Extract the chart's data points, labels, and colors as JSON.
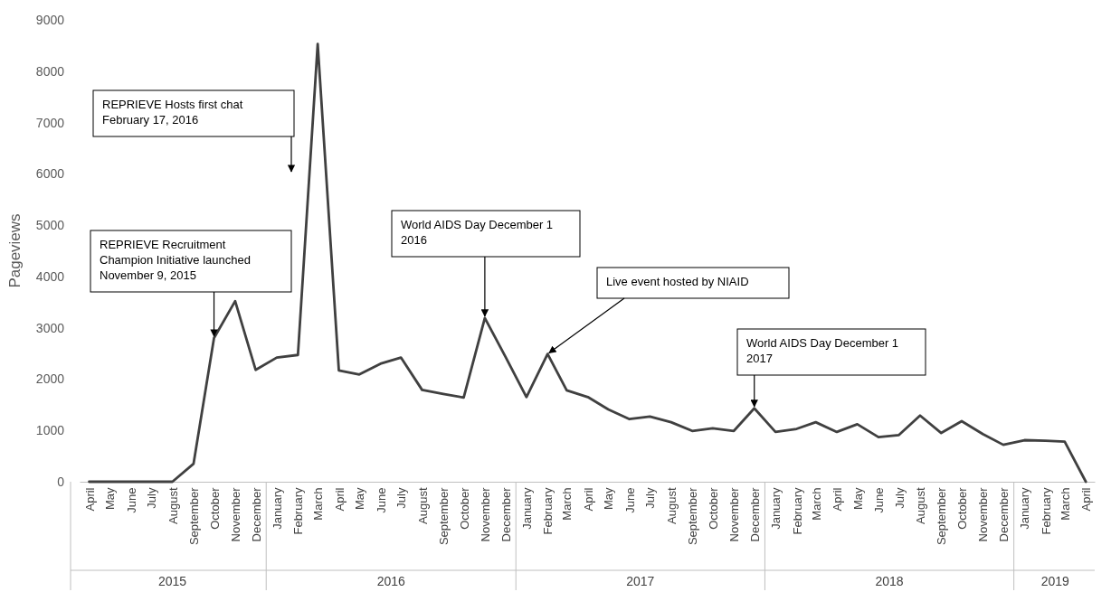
{
  "chart_data": {
    "type": "line",
    "ylabel": "Pageviews",
    "x": [
      "2015-04",
      "2015-05",
      "2015-06",
      "2015-07",
      "2015-08",
      "2015-09",
      "2015-10",
      "2015-11",
      "2015-12",
      "2016-01",
      "2016-02",
      "2016-03",
      "2016-04",
      "2016-05",
      "2016-06",
      "2016-07",
      "2016-08",
      "2016-09",
      "2016-10",
      "2016-11",
      "2016-12",
      "2017-01",
      "2017-02",
      "2017-03",
      "2017-04",
      "2017-05",
      "2017-06",
      "2017-07",
      "2017-08",
      "2017-09",
      "2017-10",
      "2017-11",
      "2017-12",
      "2018-01",
      "2018-02",
      "2018-03",
      "2018-04",
      "2018-05",
      "2018-06",
      "2018-07",
      "2018-08",
      "2018-09",
      "2018-10",
      "2018-11",
      "2018-12",
      "2019-01",
      "2019-02",
      "2019-03",
      "2019-04"
    ],
    "series": [
      {
        "color": "#404040",
        "values": [
          0,
          0,
          0,
          0,
          0,
          350,
          2800,
          3520,
          2180,
          2420,
          2470,
          8530,
          2170,
          2090,
          2300,
          2420,
          1790,
          1710,
          1640,
          3190,
          2440,
          1650,
          2490,
          1780,
          1650,
          1410,
          1220,
          1270,
          1160,
          990,
          1040,
          990,
          1430,
          970,
          1030,
          1160,
          970,
          1120,
          870,
          910,
          1290,
          950,
          1180,
          930,
          720,
          810,
          800,
          780,
          0
        ]
      }
    ],
    "xlim": [
      "2015-03-18",
      "2019-04-14"
    ],
    "xticks": [
      {
        "value": "2015-04",
        "label": "April"
      },
      {
        "value": "2015-05",
        "label": "May"
      },
      {
        "value": "2015-06",
        "label": "June"
      },
      {
        "value": "2015-07",
        "label": "July"
      },
      {
        "value": "2015-08",
        "label": "August"
      },
      {
        "value": "2015-09",
        "label": "September"
      },
      {
        "value": "2015-10",
        "label": "October"
      },
      {
        "value": "2015-11",
        "label": "November"
      },
      {
        "value": "2015-12",
        "label": "December"
      },
      {
        "value": "2016-01",
        "label": "January"
      },
      {
        "value": "2016-02",
        "label": "February"
      },
      {
        "value": "2016-03",
        "label": "March"
      },
      {
        "value": "2016-04",
        "label": "April"
      },
      {
        "value": "2016-05",
        "label": "May"
      },
      {
        "value": "2016-06",
        "label": "June"
      },
      {
        "value": "2016-07",
        "label": "July"
      },
      {
        "value": "2016-08",
        "label": "August"
      },
      {
        "value": "2016-09",
        "label": "September"
      },
      {
        "value": "2016-10",
        "label": "October"
      },
      {
        "value": "2016-11",
        "label": "November"
      },
      {
        "value": "2016-12",
        "label": "December"
      },
      {
        "value": "2017-01",
        "label": "January"
      },
      {
        "value": "2017-02",
        "label": "February"
      },
      {
        "value": "2017-03",
        "label": "March"
      },
      {
        "value": "2017-04",
        "label": "April"
      },
      {
        "value": "2017-05",
        "label": "May"
      },
      {
        "value": "2017-06",
        "label": "June"
      },
      {
        "value": "2017-07",
        "label": "July"
      },
      {
        "value": "2017-08",
        "label": "August"
      },
      {
        "value": "2017-09",
        "label": "September"
      },
      {
        "value": "2017-10",
        "label": "October"
      },
      {
        "value": "2017-11",
        "label": "November"
      },
      {
        "value": "2017-12",
        "label": "December"
      },
      {
        "value": "2018-01",
        "label": "January"
      },
      {
        "value": "2018-02",
        "label": "February"
      },
      {
        "value": "2018-03",
        "label": "March"
      },
      {
        "value": "2018-04",
        "label": "April"
      },
      {
        "value": "2018-05",
        "label": "May"
      },
      {
        "value": "2018-06",
        "label": "June"
      },
      {
        "value": "2018-07",
        "label": "July"
      },
      {
        "value": "2018-08",
        "label": "August"
      },
      {
        "value": "2018-09",
        "label": "September"
      },
      {
        "value": "2018-10",
        "label": "October"
      },
      {
        "value": "2018-11",
        "label": "November"
      },
      {
        "value": "2018-12",
        "label": "December"
      },
      {
        "value": "2019-01",
        "label": "January"
      },
      {
        "value": "2019-02",
        "label": "February"
      },
      {
        "value": "2019-03",
        "label": "March"
      },
      {
        "value": "2019-04",
        "label": "April"
      }
    ],
    "ylim": [
      0,
      9000
    ],
    "yticks": [
      0,
      1000,
      2000,
      3000,
      4000,
      5000,
      6000,
      7000,
      8000,
      9000
    ],
    "grid": false,
    "marker": "none",
    "line_style": "solid",
    "annotations": [
      {
        "text": "REPRIEVE Recruitment Champion Initiative launched November 9, 2015",
        "x": "2015-10",
        "y": 2800
      },
      "REPRIEVE Hosts first chat February 17, 2016",
      {
        "text": "World AIDS Day December 1 2016",
        "x": "2016-11",
        "y": 3190
      },
      {
        "text": "Live event hosted by NIAID",
        "x": "2017-02",
        "y": 2490
      },
      {
        "text": "World AIDS Day December 1 2017",
        "x": "2017-12",
        "y": 1430
      },
      "2015",
      "2016",
      "2017",
      "2018",
      "2019"
    ]
  }
}
